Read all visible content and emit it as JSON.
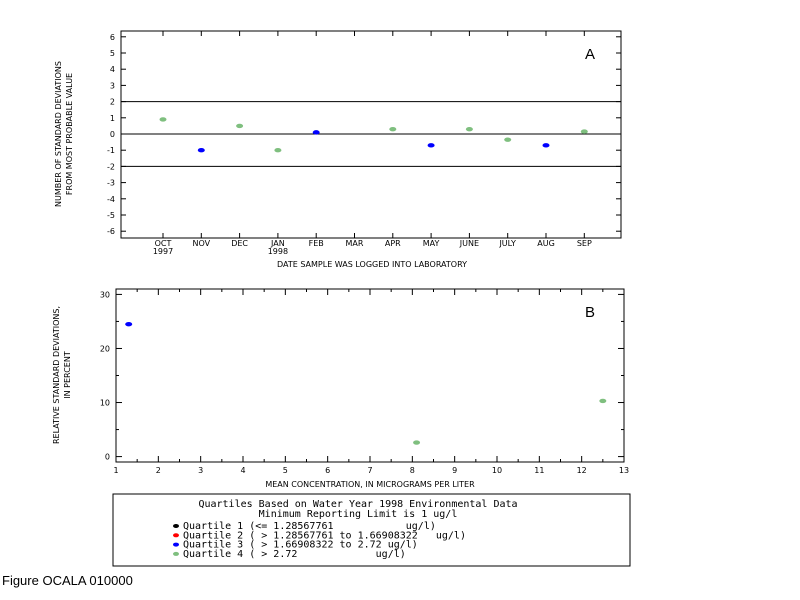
{
  "chart_data": [
    {
      "type": "scatter",
      "panel_label": "A",
      "xlabel": "DATE SAMPLE WAS LOGGED INTO LABORATORY",
      "ylabel_lines": [
        "NUMBER OF STANDARD DEVIATIONS",
        "FROM MOST PROBABLE VALUE"
      ],
      "ylim": [
        -6,
        6
      ],
      "yticks": [
        "-6",
        "-5",
        "-4",
        "-3",
        "-2",
        "-1",
        "0",
        "1",
        "2",
        "3",
        "4",
        "5",
        "6"
      ],
      "months": [
        "OCT",
        "NOV",
        "DEC",
        "JAN",
        "FEB",
        "MAR",
        "APR",
        "MAY",
        "JUNE",
        "JULY",
        "AUG",
        "SEP"
      ],
      "year_labels": [
        {
          "month": "OCT",
          "label": "1997"
        },
        {
          "month": "JAN",
          "label": "1998"
        }
      ],
      "reference_lines": [
        2,
        0,
        -2
      ],
      "points": [
        {
          "month": "OCT",
          "y": 0.9,
          "quartile": 4
        },
        {
          "month": "NOV",
          "y": -1.0,
          "quartile": 3
        },
        {
          "month": "DEC",
          "y": 0.5,
          "quartile": 4
        },
        {
          "month": "JAN",
          "y": -1.0,
          "quartile": 4
        },
        {
          "month": "FEB",
          "y": 0.1,
          "quartile": 3
        },
        {
          "month": "APR",
          "y": 0.3,
          "quartile": 4
        },
        {
          "month": "MAY",
          "y": -0.7,
          "quartile": 3
        },
        {
          "month": "JUNE",
          "y": 0.3,
          "quartile": 4
        },
        {
          "month": "JULY",
          "y": -0.35,
          "quartile": 4
        },
        {
          "month": "AUG",
          "y": -0.7,
          "quartile": 3
        },
        {
          "month": "SEP",
          "y": 0.15,
          "quartile": 4
        }
      ]
    },
    {
      "type": "scatter",
      "panel_label": "B",
      "xlabel": "MEAN CONCENTRATION, IN MICROGRAMS PER LITER",
      "ylabel_lines": [
        "RELATIVE STANDARD DEVIATIONS,",
        "IN PERCENT"
      ],
      "xlim": [
        1,
        13
      ],
      "ylim": [
        -1,
        31
      ],
      "xticks": [
        "1",
        "2",
        "3",
        "4",
        "5",
        "6",
        "7",
        "8",
        "9",
        "10",
        "11",
        "12",
        "13"
      ],
      "yticks": [
        "0",
        "10",
        "20",
        "30"
      ],
      "points": [
        {
          "x": 1.3,
          "y": 24.5,
          "quartile": 3
        },
        {
          "x": 8.1,
          "y": 2.6,
          "quartile": 4
        },
        {
          "x": 12.5,
          "y": 10.3,
          "quartile": 4
        }
      ]
    }
  ],
  "legend": {
    "title_line1": "Quartiles Based on Water Year 1998 Environmental Data",
    "title_line2": "Minimum Reporting Limit is 1 ug/l",
    "items": [
      {
        "text": "Quartile 1 (<= 1.28567761            ug/l)",
        "color": "#000000"
      },
      {
        "text": "Quartile 2 ( > 1.28567761 to 1.66908322   ug/l)",
        "color": "#ff0000"
      },
      {
        "text": "Quartile 3 ( > 1.66908322 to 2.72 ug/l)",
        "color": "#0000ff"
      },
      {
        "text": "Quartile 4 ( > 2.72             ug/l)",
        "color": "#7fbf7f"
      }
    ]
  },
  "quartile_colors": {
    "1": "#000000",
    "2": "#ff0000",
    "3": "#0000ff",
    "4": "#7fbf7f"
  },
  "figure_caption": "Figure OCALA 010000"
}
